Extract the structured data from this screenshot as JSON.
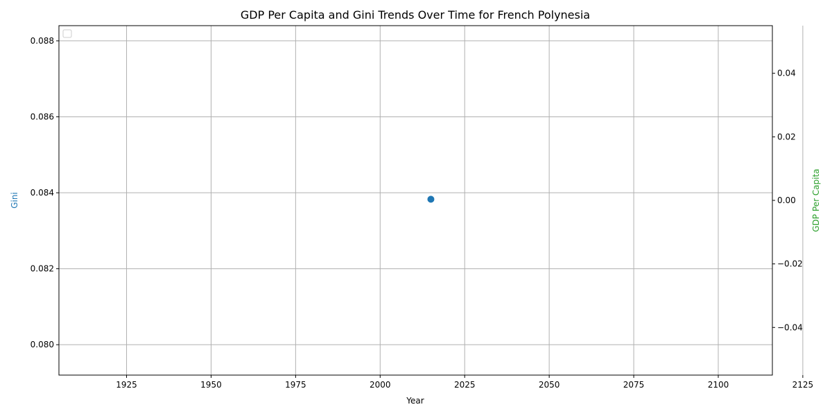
{
  "chart_data": {
    "type": "scatter",
    "title": "GDP Per Capita and Gini Trends Over Time for French Polynesia",
    "xlabel": "Year",
    "ylabel_left": "Gini",
    "ylabel_right": "GDP Per Capita",
    "xlim": [
      1905,
      2116
    ],
    "ylim_left": [
      0.0792,
      0.0884
    ],
    "ylim_right": [
      -0.055,
      0.055
    ],
    "x_ticks": [
      "1925",
      "1950",
      "1975",
      "2000",
      "2025",
      "2050",
      "2075",
      "2100",
      "2125"
    ],
    "y_left_ticks": [
      "0.080",
      "0.082",
      "0.084",
      "0.086",
      "0.088"
    ],
    "y_right_ticks": [
      "−0.04",
      "−0.02",
      "0.00",
      "0.02",
      "0.04"
    ],
    "grid": true,
    "legend_placement": "top-left",
    "legend_entries": [],
    "series": [
      {
        "axis": "left",
        "x": [
          2015
        ],
        "y": [
          0.08383
        ]
      },
      {
        "axis": "right",
        "x": [],
        "y": []
      }
    ],
    "colors": {
      "gini": "#1f77b4",
      "gdp": "#2ca02c",
      "grid": "#b0b0b0",
      "axis": "#000000"
    }
  }
}
